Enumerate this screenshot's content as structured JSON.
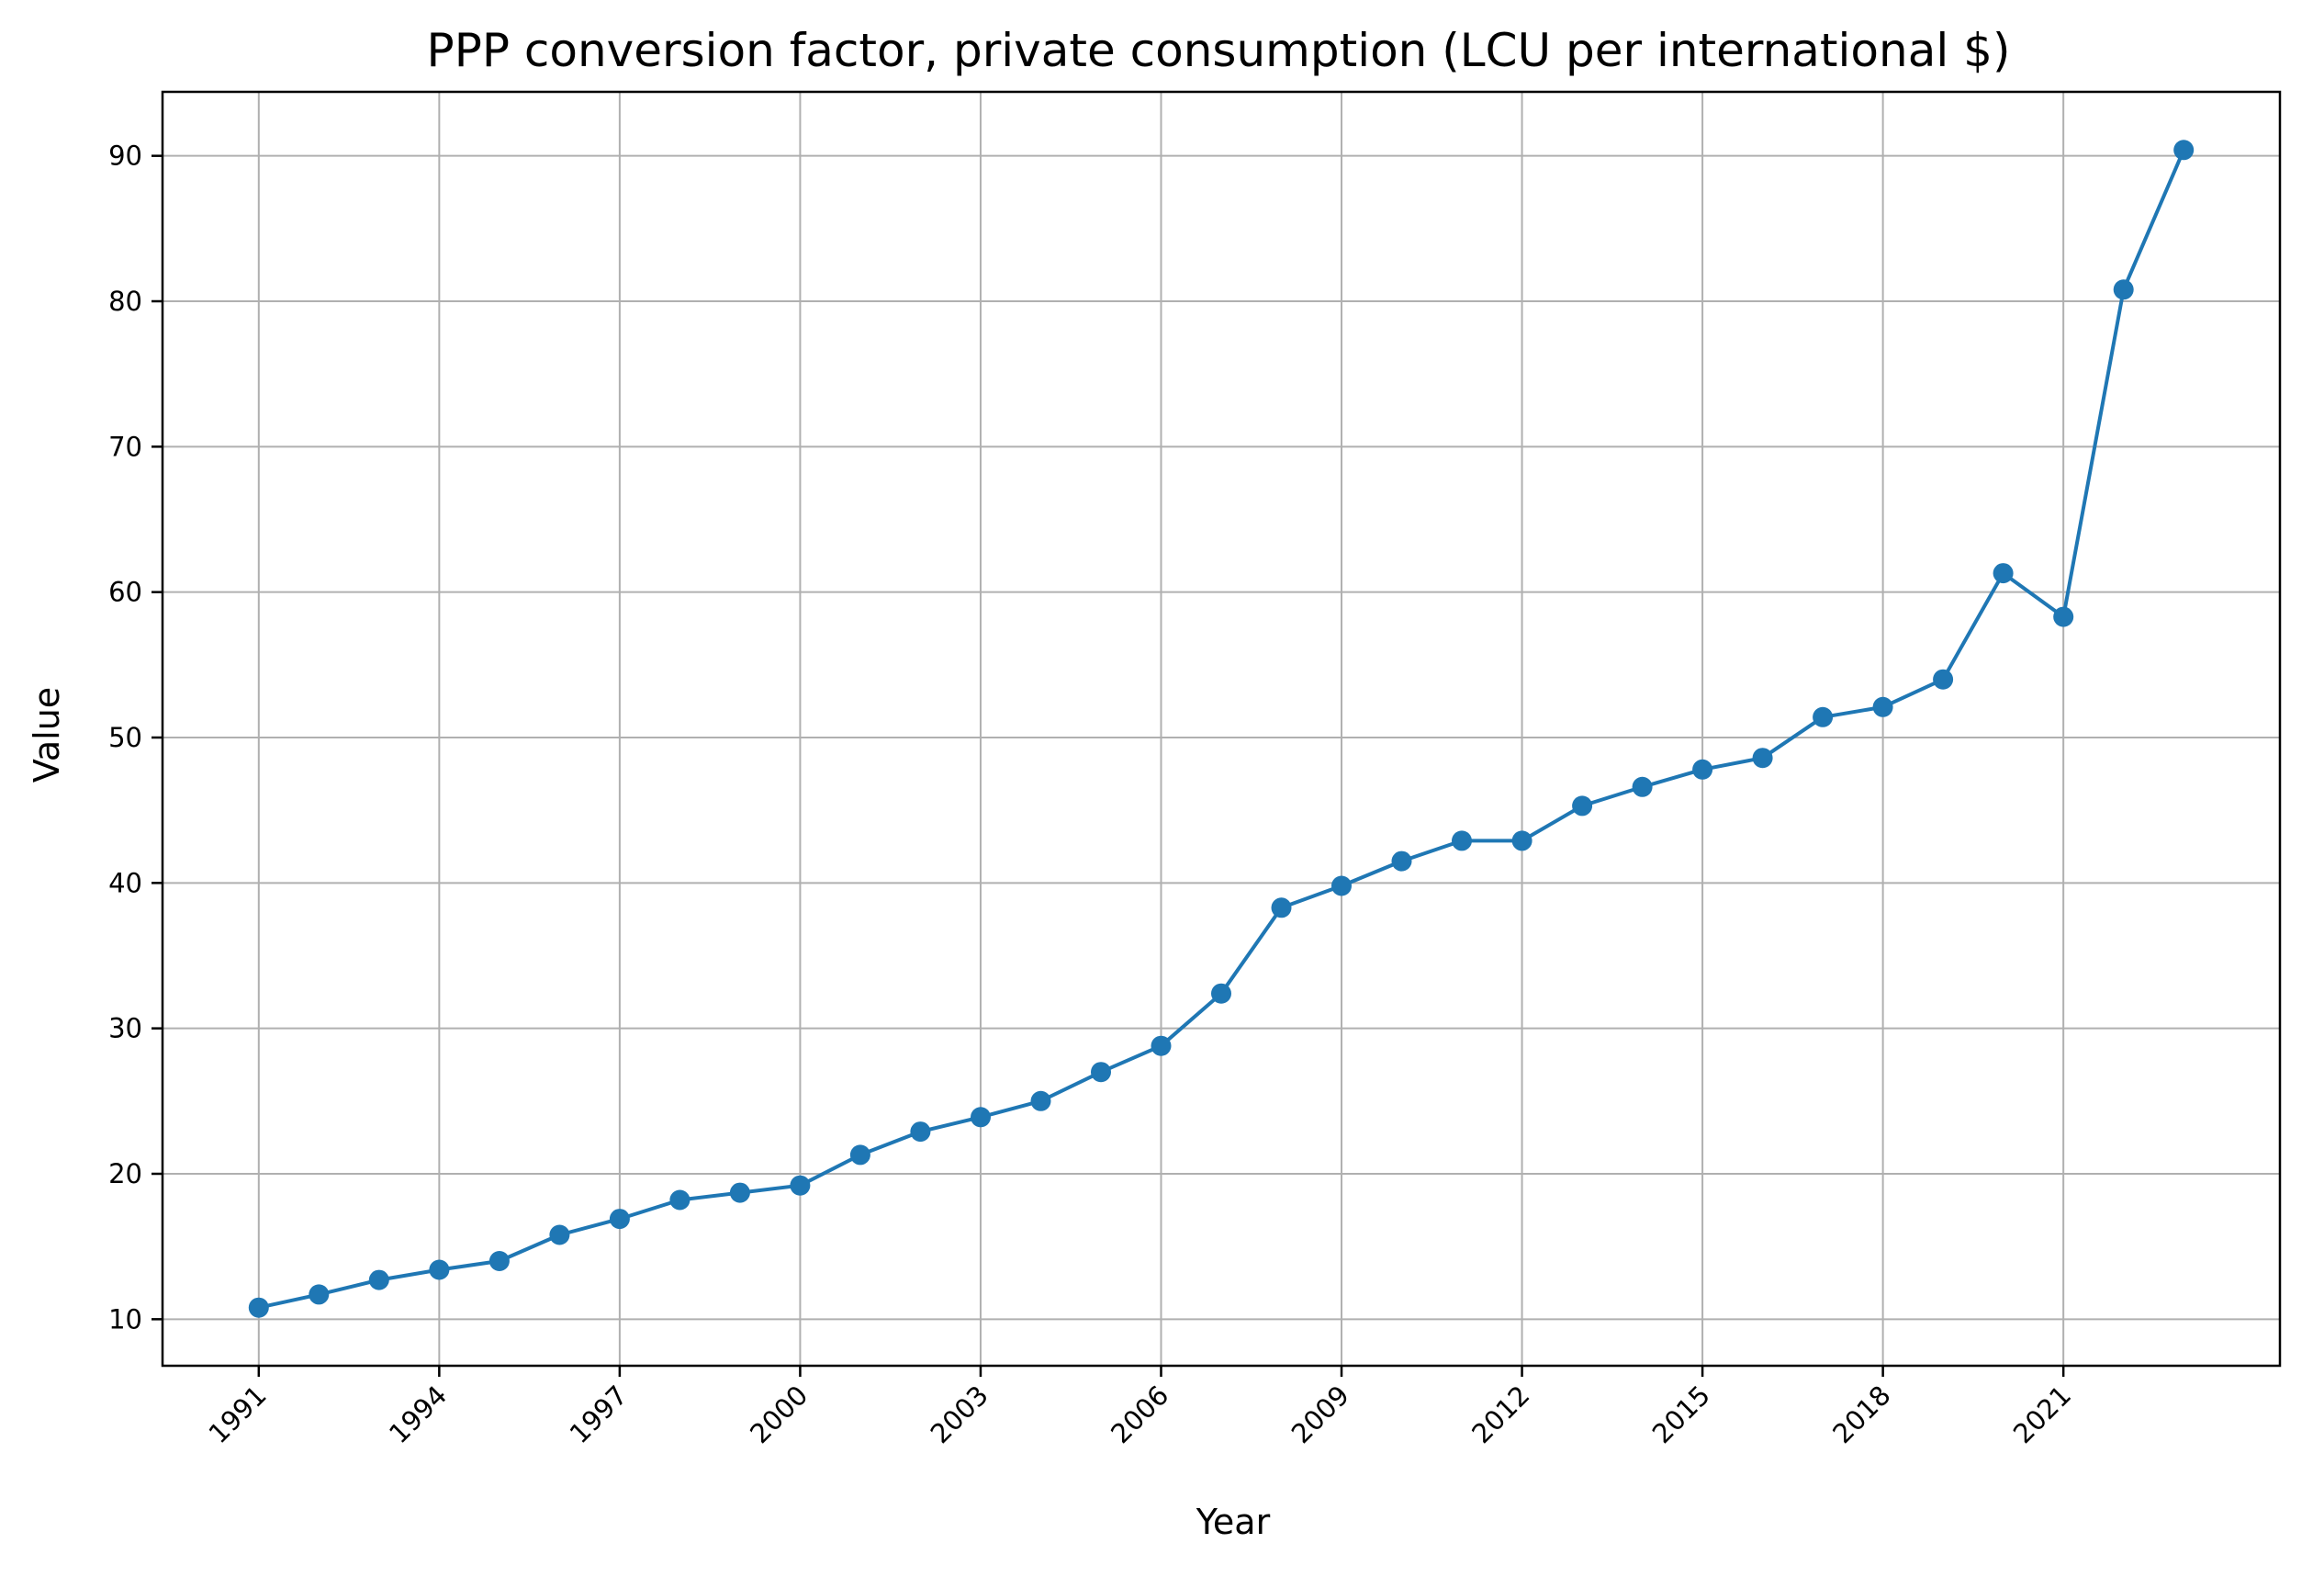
{
  "chart_data": {
    "type": "line",
    "title": "PPP conversion factor, private consumption (LCU per international $)",
    "xlabel": "Year",
    "ylabel": "Value",
    "x": [
      1991,
      1992,
      1993,
      1994,
      1995,
      1996,
      1997,
      1998,
      1999,
      2000,
      2001,
      2002,
      2003,
      2004,
      2005,
      2006,
      2007,
      2008,
      2009,
      2010,
      2011,
      2012,
      2013,
      2014,
      2015,
      2016,
      2017,
      2018,
      2019,
      2020,
      2021,
      2022,
      2023
    ],
    "series": [
      {
        "values": [
          10.8,
          11.7,
          12.7,
          13.4,
          14.0,
          15.8,
          16.9,
          18.2,
          18.7,
          19.2,
          21.3,
          22.9,
          23.9,
          25.0,
          27.0,
          28.8,
          32.4,
          38.3,
          39.8,
          41.5,
          42.9,
          42.9,
          45.3,
          46.6,
          47.8,
          48.6,
          51.4,
          52.1,
          54.0,
          61.3,
          58.3,
          80.8,
          90.4
        ],
        "color": "#1f77b4"
      }
    ],
    "x_ticks": [
      "1991",
      "1994",
      "1997",
      "2000",
      "2003",
      "2006",
      "2009",
      "2012",
      "2015",
      "2018",
      "2021"
    ],
    "y_ticks": [
      "10",
      "20",
      "30",
      "40",
      "50",
      "60",
      "70",
      "80",
      "90"
    ],
    "xlim": [
      1989.4,
      2024.6
    ],
    "ylim": [
      6.8,
      94.4
    ],
    "grid": true,
    "legend": "none"
  }
}
